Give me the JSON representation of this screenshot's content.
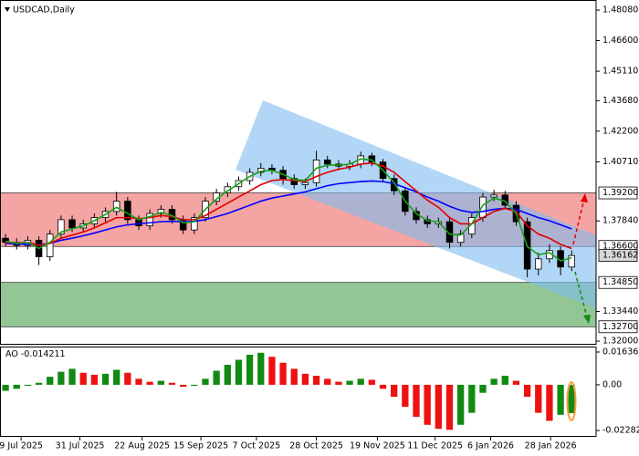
{
  "chart_data": [
    {
      "type": "candlestick",
      "title": "USDCAD,Daily",
      "open": [
        1.37,
        1.368,
        1.3665,
        1.369,
        1.361,
        1.372,
        1.379,
        1.375,
        1.377,
        1.38,
        1.383,
        1.388,
        1.379,
        1.376,
        1.382,
        1.384,
        1.379,
        1.374,
        1.38,
        1.388,
        1.392,
        1.395,
        1.398,
        1.402,
        1.404,
        1.403,
        1.399,
        1.396,
        1.397,
        1.408,
        1.406,
        1.405,
        1.406,
        1.41,
        1.407,
        1.399,
        1.393,
        1.383,
        1.379,
        1.377,
        1.378,
        1.368,
        1.372,
        1.38,
        1.39,
        1.391,
        1.386,
        1.378,
        1.355,
        1.36,
        1.364,
        1.356
      ],
      "high": [
        1.372,
        1.37,
        1.371,
        1.371,
        1.374,
        1.381,
        1.381,
        1.379,
        1.382,
        1.385,
        1.3925,
        1.39,
        1.381,
        1.384,
        1.386,
        1.386,
        1.381,
        1.382,
        1.39,
        1.394,
        1.397,
        1.4,
        1.404,
        1.4065,
        1.406,
        1.405,
        1.401,
        1.399,
        1.4125,
        1.41,
        1.408,
        1.408,
        1.412,
        1.4115,
        1.4085,
        1.401,
        1.395,
        1.385,
        1.381,
        1.38,
        1.38,
        1.374,
        1.382,
        1.392,
        1.3935,
        1.393,
        1.388,
        1.38,
        1.363,
        1.367,
        1.366,
        1.364
      ],
      "low": [
        1.366,
        1.3645,
        1.3645,
        1.357,
        1.359,
        1.37,
        1.373,
        1.373,
        1.375,
        1.378,
        1.381,
        1.377,
        1.374,
        1.374,
        1.38,
        1.377,
        1.372,
        1.372,
        1.378,
        1.386,
        1.39,
        1.393,
        1.396,
        1.4,
        1.401,
        1.396,
        1.394,
        1.394,
        1.395,
        1.404,
        1.403,
        1.403,
        1.404,
        1.405,
        1.397,
        1.391,
        1.381,
        1.377,
        1.375,
        1.375,
        1.365,
        1.366,
        1.37,
        1.378,
        1.388,
        1.384,
        1.376,
        1.351,
        1.352,
        1.358,
        1.352,
        1.354
      ],
      "close": [
        1.368,
        1.3665,
        1.369,
        1.361,
        1.372,
        1.379,
        1.375,
        1.377,
        1.38,
        1.383,
        1.388,
        1.379,
        1.376,
        1.382,
        1.384,
        1.379,
        1.374,
        1.38,
        1.388,
        1.392,
        1.395,
        1.398,
        1.402,
        1.404,
        1.403,
        1.399,
        1.396,
        1.397,
        1.408,
        1.406,
        1.405,
        1.406,
        1.41,
        1.407,
        1.399,
        1.393,
        1.383,
        1.379,
        1.377,
        1.378,
        1.368,
        1.372,
        1.38,
        1.39,
        1.391,
        1.386,
        1.378,
        1.355,
        1.36,
        1.364,
        1.356,
        1.3616
      ],
      "up_color": "#ffffff",
      "down_color": "#000000",
      "wick_color": "#000000",
      "series": [
        {
          "color": "#0000ff",
          "values": [
            1.3675,
            1.3672,
            1.367,
            1.3668,
            1.3675,
            1.369,
            1.37,
            1.3712,
            1.3725,
            1.374,
            1.3755,
            1.3765,
            1.377,
            1.3775,
            1.378,
            1.3782,
            1.378,
            1.3782,
            1.379,
            1.3805,
            1.382,
            1.384,
            1.386,
            1.388,
            1.3895,
            1.3905,
            1.3915,
            1.3925,
            1.394,
            1.3955,
            1.3965,
            1.397,
            1.3975,
            1.3978,
            1.3975,
            1.3965,
            1.3945,
            1.3925,
            1.39,
            1.388,
            1.3855,
            1.3835,
            1.3825,
            1.383,
            1.384,
            1.3845,
            1.384,
            1.382,
            1.38,
            1.3785,
            1.3765,
            1.3745
          ]
        },
        {
          "color": "#e00000",
          "values": [
            1.368,
            1.3678,
            1.368,
            1.3665,
            1.3675,
            1.37,
            1.3715,
            1.373,
            1.375,
            1.3775,
            1.38,
            1.38,
            1.3795,
            1.38,
            1.381,
            1.3805,
            1.379,
            1.379,
            1.381,
            1.384,
            1.387,
            1.39,
            1.393,
            1.396,
            1.398,
            1.3985,
            1.398,
            1.3975,
            1.4,
            1.402,
            1.4035,
            1.4045,
            1.406,
            1.4065,
            1.405,
            1.402,
            1.3975,
            1.393,
            1.3885,
            1.385,
            1.38,
            1.377,
            1.377,
            1.38,
            1.383,
            1.3845,
            1.383,
            1.376,
            1.372,
            1.37,
            1.367,
            1.365
          ]
        },
        {
          "color": "#18a018",
          "values": [
            1.3685,
            1.3675,
            1.368,
            1.365,
            1.368,
            1.373,
            1.3745,
            1.376,
            1.3785,
            1.3815,
            1.385,
            1.382,
            1.379,
            1.3805,
            1.3825,
            1.381,
            1.3775,
            1.378,
            1.384,
            1.389,
            1.393,
            1.3965,
            1.4,
            1.4025,
            1.403,
            1.401,
            1.3985,
            1.398,
            1.404,
            1.4055,
            1.4055,
            1.406,
            1.4085,
            1.408,
            1.403,
            1.397,
            1.388,
            1.382,
            1.3785,
            1.378,
            1.372,
            1.3715,
            1.377,
            1.386,
            1.3895,
            1.388,
            1.382,
            1.366,
            1.362,
            1.363,
            1.359,
            1.3605
          ]
        }
      ],
      "zones": [
        {
          "from": 1.392,
          "to": 1.366,
          "color": "#f49a9a"
        },
        {
          "from": 1.3485,
          "to": 1.327,
          "color": "#86c08a"
        }
      ],
      "levels": [
        {
          "value": 1.392,
          "label": "1.39200",
          "color": "#ffffff"
        },
        {
          "value": 1.366,
          "label": "1.36600",
          "color": "#ffffff"
        },
        {
          "value": 1.36162,
          "label": "1.36162",
          "color": "#d8d8d8"
        },
        {
          "value": 1.3485,
          "label": "1.34850",
          "color": "#ffffff"
        },
        {
          "value": 1.327,
          "label": "1.32700",
          "color": "#ffffff"
        }
      ],
      "xlim": [
        -0.5,
        53.2
      ],
      "ylim": [
        1.3187,
        1.4857
      ],
      "yticks": [
        {
          "value": 1.4808,
          "label": "1.48080"
        },
        {
          "value": 1.466,
          "label": "1.46600"
        },
        {
          "value": 1.4511,
          "label": "1.45110"
        },
        {
          "value": 1.4368,
          "label": "1.43680"
        },
        {
          "value": 1.422,
          "label": "1.42200"
        },
        {
          "value": 1.4071,
          "label": "1.40710"
        },
        {
          "value": 1.3784,
          "label": "1.37840"
        },
        {
          "value": 1.3344,
          "label": "1.33440"
        },
        {
          "value": 1.32,
          "label": "1.32000"
        }
      ],
      "xticks": [
        {
          "value": 1.4,
          "label": "9 Jul 2025"
        },
        {
          "value": 6.7,
          "label": "31 Jul 2025"
        },
        {
          "value": 12.3,
          "label": "22 Aug 2025"
        },
        {
          "value": 17.6,
          "label": "15 Sep 2025"
        },
        {
          "value": 22.6,
          "label": "7 Oct 2025"
        },
        {
          "value": 28.0,
          "label": "28 Oct 2025"
        },
        {
          "value": 33.5,
          "label": "19 Nov 2025"
        },
        {
          "value": 38.7,
          "label": "11 Dec 2025"
        },
        {
          "value": 43.7,
          "label": "6 Jan 2026"
        },
        {
          "value": 49.1,
          "label": "28 Jan 2026"
        }
      ]
    },
    {
      "type": "bar",
      "title": "AO",
      "value": -0.014211,
      "values": [
        -0.003,
        -0.002,
        -0.0005,
        0.001,
        0.004,
        0.0065,
        0.008,
        0.006,
        0.005,
        0.0055,
        0.0075,
        0.006,
        0.003,
        0.0015,
        0.002,
        0.001,
        -0.001,
        -0.0005,
        0.003,
        0.007,
        0.01,
        0.0125,
        0.015,
        0.016,
        0.014,
        0.011,
        0.008,
        0.0055,
        0.0045,
        0.003,
        0.0015,
        0.002,
        0.003,
        0.0025,
        -0.002,
        -0.006,
        -0.011,
        -0.016,
        -0.02,
        -0.022,
        -0.0225,
        -0.02,
        -0.014,
        -0.004,
        0.003,
        0.0045,
        0.002,
        -0.006,
        -0.014,
        -0.018,
        -0.015,
        -0.0142
      ],
      "up_color": "#118a11",
      "down_color": "#ee1111",
      "xlim": [
        -0.5,
        53.2
      ],
      "ylim": [
        -0.02556,
        0.0191
      ],
      "yticks": [
        0.016362,
        {
          "value": 0,
          "label": "0.00"
        },
        -0.022825
      ]
    }
  ]
}
